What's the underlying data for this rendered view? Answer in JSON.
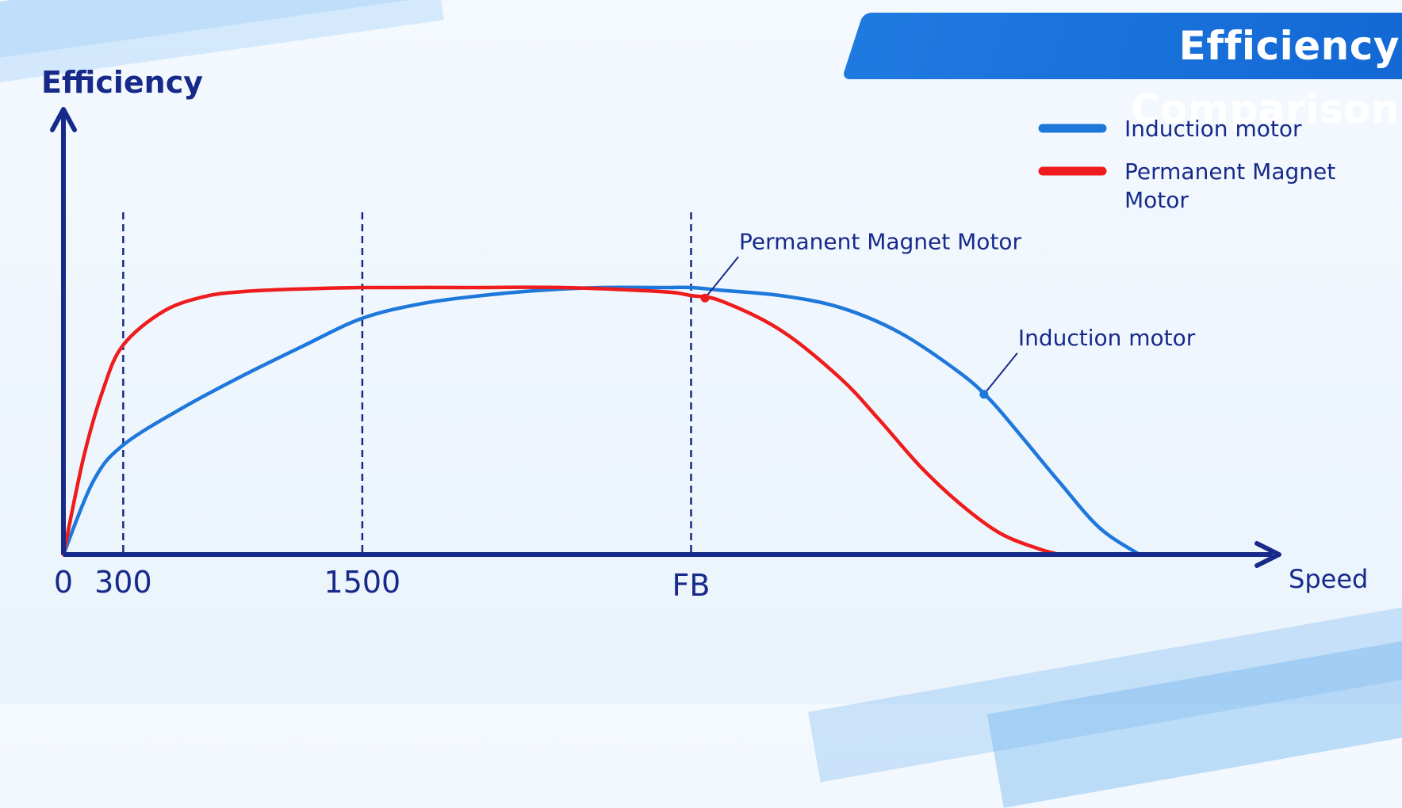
{
  "colors": {
    "axis": "#172a8a",
    "induction": "#1e78dc",
    "permanent_magnet": "#ee1c1c",
    "banner": "#1770da",
    "text": "#172a8a"
  },
  "chart_data": {
    "type": "line",
    "title": "Efficiency Comparison",
    "ylabel": "Efficiency",
    "xlabel": "Speed",
    "x_ticks": [
      {
        "label": "0",
        "x": 0
      },
      {
        "label": "300",
        "x": 300
      },
      {
        "label": "1500",
        "x": 1500
      },
      {
        "label": "FB",
        "x": 3150
      }
    ],
    "reference_lines_x": [
      300,
      1500,
      3150
    ],
    "xlim": [
      0,
      5950
    ],
    "ylim": [
      0,
      1
    ],
    "grid": false,
    "legend": {
      "placement": "top-right",
      "entries": [
        {
          "label": "Induction motor",
          "series": "induction"
        },
        {
          "label": "Permanent Magnet Motor",
          "series": "permanent_magnet"
        }
      ]
    },
    "series": [
      {
        "key": "induction",
        "name": "Induction motor",
        "x": [
          0,
          150,
          300,
          600,
          900,
          1200,
          1500,
          1800,
          2100,
          2400,
          2700,
          3000,
          3150,
          3300,
          3600,
          3900,
          4200,
          4500,
          4650,
          4800,
          5000,
          5200,
          5400
        ],
        "y": [
          0,
          0.275,
          0.41,
          0.55,
          0.67,
          0.78,
          0.885,
          0.94,
          0.97,
          0.99,
          1.0,
          1.0,
          1.0,
          0.99,
          0.97,
          0.925,
          0.83,
          0.68,
          0.58,
          0.45,
          0.27,
          0.1,
          0.0
        ]
      },
      {
        "key": "permanent_magnet",
        "name": "Permanent Magnet Motor",
        "x": [
          0,
          100,
          200,
          300,
          500,
          700,
          900,
          1200,
          1500,
          2000,
          2500,
          3000,
          3150,
          3300,
          3600,
          3900,
          4100,
          4300,
          4500,
          4700,
          4900,
          5000
        ],
        "y": [
          0,
          0.36,
          0.62,
          0.785,
          0.91,
          0.965,
          0.985,
          0.995,
          1.0,
          1.0,
          1.0,
          0.985,
          0.97,
          0.95,
          0.84,
          0.66,
          0.5,
          0.33,
          0.19,
          0.08,
          0.02,
          0.0
        ]
      }
    ],
    "annotations": [
      {
        "text": "Permanent Magnet Motor",
        "series": "permanent_magnet",
        "x": 3220
      },
      {
        "text": "Induction motor",
        "series": "induction",
        "x": 4620
      }
    ]
  }
}
